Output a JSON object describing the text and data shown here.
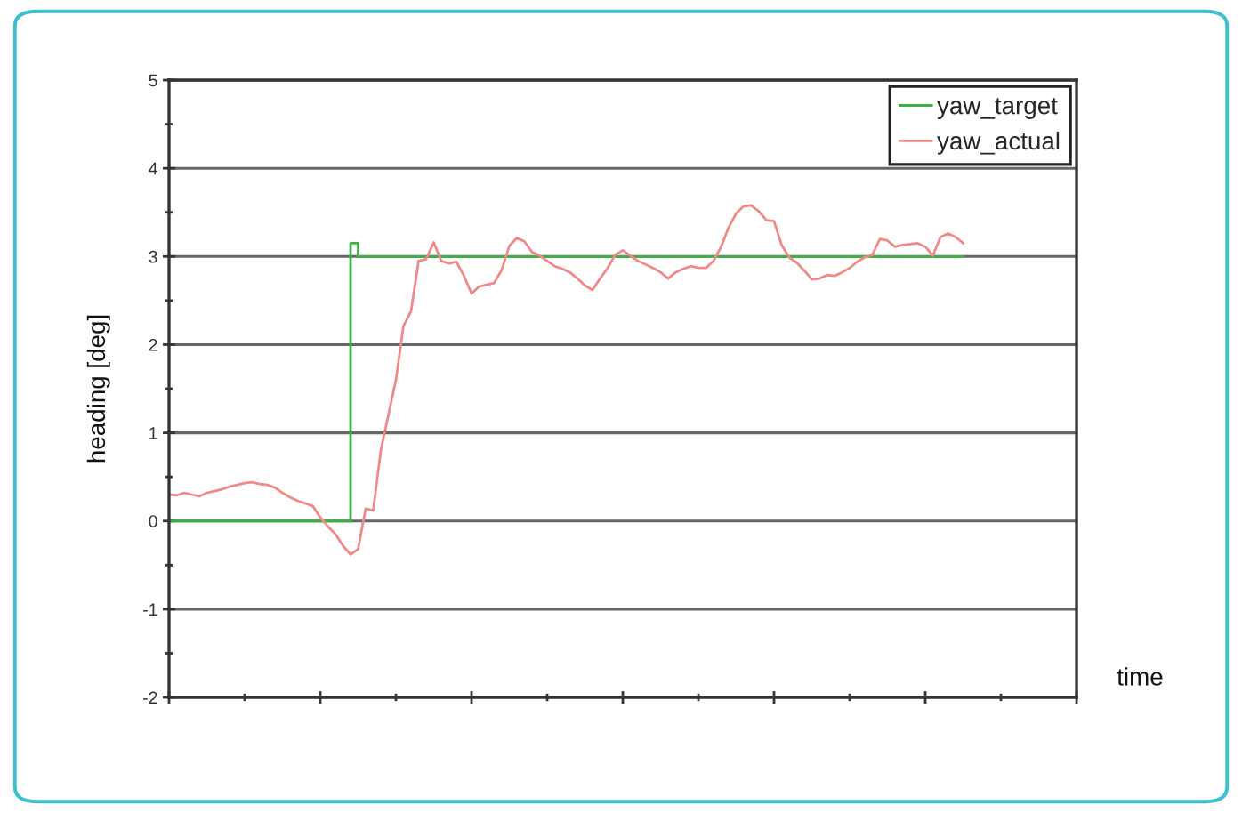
{
  "chart_data": {
    "type": "line",
    "categories": [
      null,
      null,
      null,
      null,
      null,
      null,
      null,
      null,
      null,
      null,
      null,
      null,
      null,
      null,
      null,
      null,
      null,
      null,
      null,
      null,
      null,
      null,
      null,
      null,
      null,
      null,
      null,
      null,
      null,
      null,
      null,
      null,
      null,
      null,
      null,
      null,
      null,
      null,
      null,
      null,
      null,
      null,
      null,
      null,
      null,
      null,
      null,
      null,
      null,
      null,
      null,
      null,
      null,
      null,
      null,
      null,
      null,
      null,
      null,
      null,
      null,
      null,
      null,
      null,
      null,
      null,
      null,
      null,
      null,
      null,
      null,
      null,
      null,
      null,
      null,
      null,
      null,
      null,
      null,
      null,
      null,
      null,
      null,
      null,
      null,
      null,
      null,
      null,
      null,
      null,
      null,
      null,
      null,
      null,
      null,
      null,
      null,
      null,
      null,
      null,
      null,
      null,
      null,
      null,
      null,
      null,
      null,
      null,
      null,
      null,
      null,
      null,
      null,
      null,
      null,
      null,
      null,
      null,
      null,
      null,
      null
    ],
    "series": [
      {
        "name": "yaw_target",
        "type": "step",
        "color": "#3cb043",
        "values": [
          0,
          0,
          0,
          0,
          0,
          0,
          0,
          0,
          0,
          0,
          0,
          0,
          0,
          0,
          0,
          0,
          0,
          0,
          0,
          0,
          0,
          0,
          0,
          0,
          3.15,
          3,
          3,
          3,
          3,
          3,
          3,
          3,
          3,
          3,
          3,
          3,
          3,
          3,
          3,
          3,
          3,
          3,
          3,
          3,
          3,
          3,
          3,
          3,
          3,
          3,
          3,
          3,
          3,
          3,
          3,
          3,
          3,
          3,
          3,
          3,
          3,
          3,
          3,
          3,
          3,
          3,
          3,
          3,
          3,
          3,
          3,
          3,
          3,
          3,
          3,
          3,
          3,
          3,
          3,
          3,
          3,
          3,
          3,
          3,
          3,
          3,
          3,
          3,
          3,
          3,
          3,
          3,
          3,
          3,
          3,
          3,
          3,
          3,
          3,
          3,
          3,
          3,
          3,
          3,
          3,
          3,
          null,
          null,
          null,
          null,
          null,
          null,
          null,
          null,
          null,
          null,
          null,
          null,
          null,
          null,
          null
        ]
      },
      {
        "name": "yaw_actual",
        "color": "#f08a8a",
        "values": [
          0.3,
          0.29,
          0.32,
          0.3,
          0.28,
          0.32,
          0.34,
          0.36,
          0.39,
          0.41,
          0.43,
          0.44,
          0.42,
          0.41,
          0.38,
          0.32,
          0.27,
          0.23,
          0.2,
          0.17,
          0.04,
          -0.06,
          -0.15,
          -0.28,
          -0.38,
          -0.32,
          0.14,
          0.12,
          0.8,
          1.2,
          1.6,
          2.21,
          2.38,
          2.95,
          2.97,
          3.16,
          2.95,
          2.92,
          2.94,
          2.78,
          2.58,
          2.66,
          2.68,
          2.7,
          2.85,
          3.12,
          3.21,
          3.17,
          3.05,
          3.01,
          2.95,
          2.89,
          2.86,
          2.82,
          2.75,
          2.67,
          2.62,
          2.75,
          2.87,
          3.02,
          3.07,
          3.01,
          2.95,
          2.91,
          2.87,
          2.82,
          2.75,
          2.82,
          2.86,
          2.89,
          2.87,
          2.87,
          2.95,
          3.11,
          3.33,
          3.49,
          3.57,
          3.58,
          3.51,
          3.41,
          3.4,
          3.13,
          2.99,
          2.93,
          2.84,
          2.74,
          2.75,
          2.79,
          2.78,
          2.82,
          2.87,
          2.94,
          2.99,
          3.02,
          3.2,
          3.18,
          3.11,
          3.13,
          3.14,
          3.15,
          3.11,
          3.01,
          3.22,
          3.26,
          3.22,
          3.15,
          null,
          null,
          null,
          null,
          null,
          null,
          null,
          null,
          null,
          null,
          null,
          null,
          null,
          null,
          null
        ]
      }
    ],
    "xlabel": "time",
    "ylabel": "heading [deg]",
    "ylim": [
      -2,
      5
    ],
    "yticks": [
      -2,
      -1,
      0,
      1,
      2,
      3,
      4,
      5
    ],
    "grid": "y",
    "legend": "top right",
    "tick_labels": "y"
  }
}
